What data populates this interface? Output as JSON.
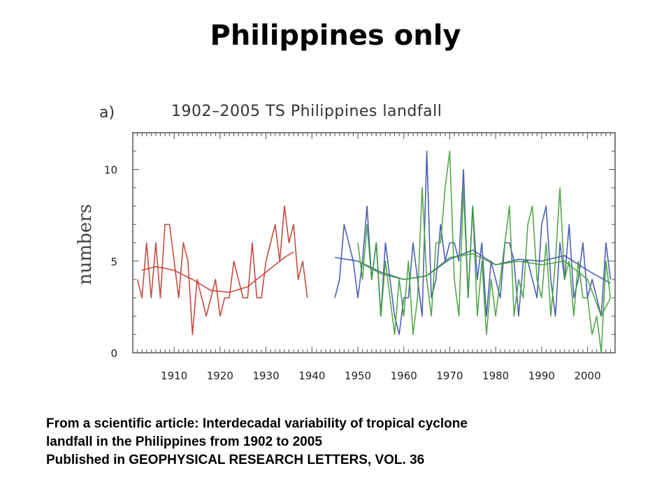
{
  "slide": {
    "title": "Philippines only",
    "caption_lines": [
      "From a scientific article: Interdecadal variability of tropical cyclone",
      "landfall in the Philippines from 1902 to 2005",
      "Published in GEOPHYSICAL RESEARCH LETTERS, VOL. 36"
    ]
  },
  "chart_data": {
    "type": "line",
    "panel_label": "a)",
    "title": "1902–2005 TS Philippines landfall",
    "xlabel": "",
    "ylabel": "numbers",
    "xlim": [
      1901,
      2006
    ],
    "ylim": [
      0,
      12
    ],
    "xticks": [
      1910,
      1920,
      1930,
      1940,
      1950,
      1960,
      1970,
      1980,
      1990,
      2000
    ],
    "yticks": [
      0,
      5,
      10
    ],
    "grid": false,
    "colors": {
      "red": "#c0392b",
      "blue": "#3a4fa8",
      "green": "#3f9e37"
    },
    "series": [
      {
        "color": "red",
        "x": [
          1902,
          1903,
          1904,
          1905,
          1906,
          1907,
          1908,
          1909,
          1910,
          1911,
          1912,
          1913,
          1914,
          1915,
          1916,
          1917,
          1918,
          1919,
          1920,
          1921,
          1922,
          1923,
          1924,
          1925,
          1926,
          1927,
          1928,
          1929,
          1930,
          1931,
          1932,
          1933,
          1934,
          1935,
          1936,
          1937,
          1938,
          1939
        ],
        "values": [
          4,
          3,
          6,
          3,
          6,
          3,
          7,
          7,
          5,
          3,
          6,
          5,
          1,
          4,
          3,
          2,
          3,
          4,
          2,
          3,
          3,
          5,
          4,
          3,
          3,
          6,
          3,
          3,
          5,
          6,
          7,
          5,
          8,
          6,
          7,
          4,
          5,
          3
        ]
      },
      {
        "color": "red",
        "x": [
          1903,
          1906,
          1910,
          1914,
          1918,
          1922,
          1926,
          1930,
          1934,
          1936
        ],
        "values": [
          4.5,
          4.7,
          4.5,
          4.0,
          3.4,
          3.3,
          3.6,
          4.4,
          5.2,
          5.5
        ]
      },
      {
        "color": "blue",
        "x": [
          1945,
          1946,
          1947,
          1948,
          1949,
          1950,
          1951,
          1952,
          1953,
          1954,
          1955,
          1956,
          1957,
          1958,
          1959,
          1960,
          1961,
          1962,
          1963,
          1964,
          1965,
          1966,
          1967,
          1968,
          1969,
          1970,
          1971,
          1972,
          1973,
          1974,
          1975,
          1976,
          1977,
          1978,
          1979,
          1980,
          1981,
          1982,
          1983,
          1984,
          1985,
          1986,
          1987,
          1988,
          1989,
          1990,
          1991,
          1992,
          1993,
          1994,
          1995,
          1996,
          1997,
          1998,
          1999,
          2000,
          2001,
          2002,
          2003,
          2004,
          2005
        ],
        "values": [
          3,
          4,
          7,
          6,
          5,
          3,
          5,
          8,
          4,
          6,
          2,
          6,
          4,
          2,
          1,
          3,
          3,
          6,
          4,
          2,
          11,
          3,
          4,
          7,
          5,
          6,
          6,
          5,
          10,
          3,
          8,
          4,
          6,
          2,
          5,
          4,
          3,
          6,
          6,
          5,
          2,
          5,
          5,
          4,
          3,
          7,
          8,
          4,
          2,
          6,
          4,
          7,
          3,
          4,
          6,
          3,
          4,
          3,
          2,
          6,
          4
        ]
      },
      {
        "color": "blue",
        "x": [
          1945,
          1950,
          1955,
          1960,
          1965,
          1970,
          1975,
          1980,
          1985,
          1990,
          1995,
          2000,
          2005
        ],
        "values": [
          5.2,
          5.0,
          4.4,
          4.0,
          4.2,
          5.1,
          5.6,
          4.8,
          5.1,
          5.0,
          5.3,
          4.5,
          3.8
        ]
      },
      {
        "color": "green",
        "x": [
          1950,
          1951,
          1952,
          1953,
          1954,
          1955,
          1956,
          1957,
          1958,
          1959,
          1960,
          1961,
          1962,
          1963,
          1964,
          1965,
          1966,
          1967,
          1968,
          1969,
          1970,
          1971,
          1972,
          1973,
          1974,
          1975,
          1976,
          1977,
          1978,
          1979,
          1980,
          1981,
          1982,
          1983,
          1984,
          1985,
          1986,
          1987,
          1988,
          1989,
          1990,
          1991,
          1992,
          1993,
          1994,
          1995,
          1996,
          1997,
          1998,
          1999,
          2000,
          2001,
          2002,
          2003,
          2004,
          2005
        ],
        "values": [
          6,
          4,
          7,
          4,
          6,
          2,
          5,
          3,
          1,
          4,
          2,
          5,
          1,
          3,
          9,
          4,
          2,
          6,
          6,
          9,
          11,
          4,
          2,
          9,
          3,
          8,
          2,
          5,
          1,
          4,
          2,
          4,
          6,
          8,
          2,
          4,
          3,
          7,
          8,
          4,
          3,
          6,
          2,
          5,
          9,
          4,
          5,
          2,
          5,
          3,
          3,
          1,
          2,
          0,
          5,
          3
        ]
      },
      {
        "color": "green",
        "x": [
          1950,
          1955,
          1960,
          1965,
          1970,
          1975,
          1980,
          1985,
          1990,
          1995,
          2000,
          2003,
          2005
        ],
        "values": [
          5.0,
          4.3,
          4.0,
          4.2,
          5.2,
          5.4,
          4.8,
          5.0,
          4.8,
          5.0,
          4.0,
          2.0,
          3.0
        ]
      }
    ]
  }
}
